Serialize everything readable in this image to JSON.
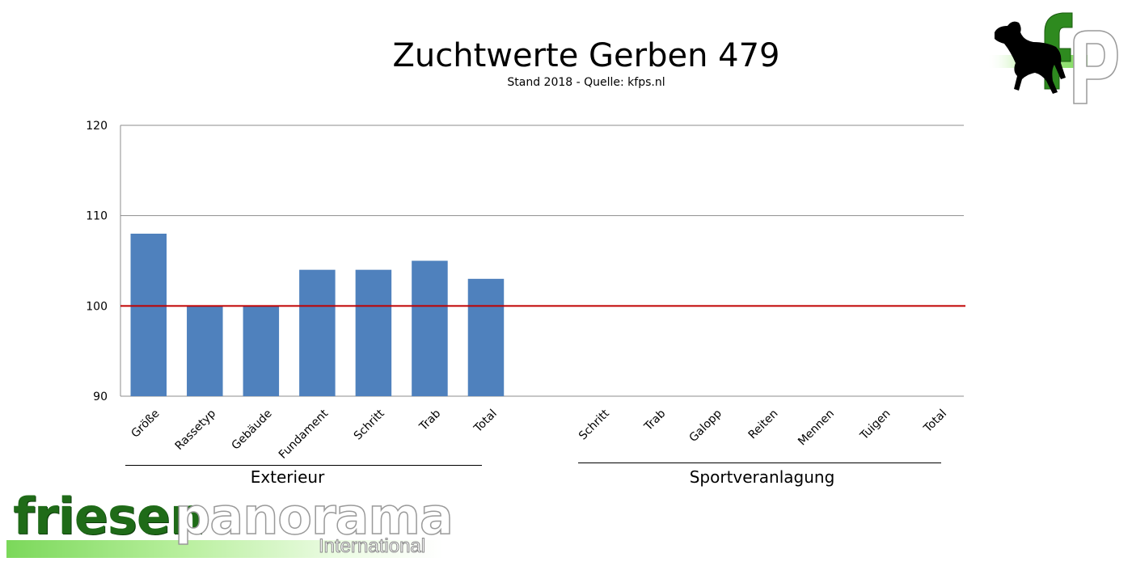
{
  "header": {
    "title": "Zuchtwerte Gerben 479",
    "subtitle": "Stand 2018 - Quelle: kfps.nl"
  },
  "chart_data": {
    "type": "bar",
    "ylim": [
      90,
      120
    ],
    "yticks": [
      90,
      100,
      110,
      120
    ],
    "grid": true,
    "reference_line": {
      "value": 100,
      "color": "#c00000"
    },
    "bar_color": "#4f81bd",
    "categories": [
      "Größe",
      "Rassetyp",
      "Gebäude",
      "Fundament",
      "Schritt",
      "Trab",
      "Total",
      "Schritt",
      "Trab",
      "Galopp",
      "Reiten",
      "Mennen",
      "Tuigen",
      "Total"
    ],
    "values": [
      108,
      100,
      100,
      104,
      104,
      105,
      103,
      null,
      null,
      null,
      null,
      null,
      null,
      null
    ],
    "groups": [
      {
        "label": "Exterieur"
      },
      {
        "label": "Sportveranlagung"
      }
    ]
  },
  "logo": {
    "text": "fp",
    "icon": "horse-icon"
  },
  "brand": {
    "part1": "friesen",
    "part2": "panorama",
    "sub": "International",
    "band_color": "#7bd85a"
  }
}
